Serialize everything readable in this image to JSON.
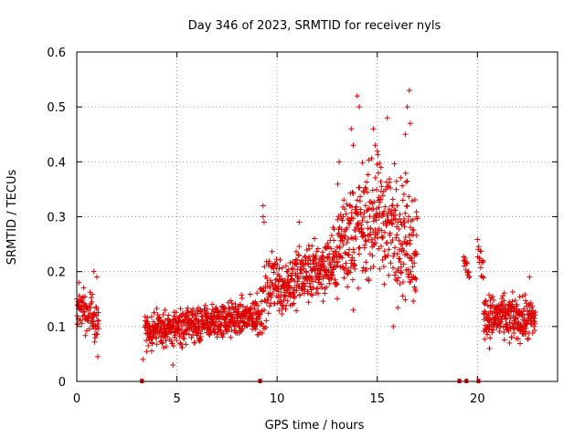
{
  "chart_data": {
    "type": "scatter",
    "title": "Day 346 of 2023, SRMTID for receiver nyls",
    "xlabel": "GPS time / hours",
    "ylabel": "SRMTID / TECUs",
    "xlim": [
      0,
      24
    ],
    "ylim": [
      0,
      0.6
    ],
    "xticks": [
      0,
      5,
      10,
      15,
      20
    ],
    "xtick_labels": [
      "0",
      "5",
      "10",
      "15",
      "20"
    ],
    "yticks": [
      0,
      0.1,
      0.2,
      0.3,
      0.4,
      0.5,
      0.6
    ],
    "ytick_labels": [
      "0",
      "0.1",
      "0.2",
      "0.3",
      "0.4",
      "0.5",
      "0.6"
    ],
    "grid": true,
    "marker": "+",
    "color": "#dd0000",
    "description": "Dense SRMTID point cloud; main features summarized as trend segments with spread, plus isolated points.",
    "segments": [
      {
        "t_start": 0.0,
        "t_end": 1.1,
        "dt": 0.012,
        "level_start": 0.14,
        "level_end": 0.11,
        "spread": 0.035
      },
      {
        "t_start": 3.4,
        "t_end": 9.0,
        "dt": 0.01,
        "level_start": 0.09,
        "level_end": 0.12,
        "spread": 0.03
      },
      {
        "t_start": 9.0,
        "t_end": 10.0,
        "dt": 0.012,
        "level_start": 0.12,
        "level_end": 0.2,
        "spread": 0.05
      },
      {
        "t_start": 10.0,
        "t_end": 13.0,
        "dt": 0.01,
        "level_start": 0.17,
        "level_end": 0.22,
        "spread": 0.05
      },
      {
        "t_start": 13.0,
        "t_end": 15.0,
        "dt": 0.01,
        "level_start": 0.25,
        "level_end": 0.3,
        "spread": 0.09
      },
      {
        "t_start": 15.0,
        "t_end": 17.0,
        "dt": 0.01,
        "level_start": 0.3,
        "level_end": 0.25,
        "spread": 0.1
      },
      {
        "t_start": 19.3,
        "t_end": 19.6,
        "dt": 0.02,
        "level_start": 0.22,
        "level_end": 0.2,
        "spread": 0.02
      },
      {
        "t_start": 20.0,
        "t_end": 20.3,
        "dt": 0.02,
        "level_start": 0.24,
        "level_end": 0.2,
        "spread": 0.025
      },
      {
        "t_start": 20.3,
        "t_end": 22.9,
        "dt": 0.01,
        "level_start": 0.12,
        "level_end": 0.11,
        "spread": 0.035
      }
    ],
    "points": [
      {
        "x": 0.1,
        "y": 0.18
      },
      {
        "x": 0.85,
        "y": 0.2
      },
      {
        "x": 1.0,
        "y": 0.19
      },
      {
        "x": 1.05,
        "y": 0.045
      },
      {
        "x": 3.3,
        "y": 0.04
      },
      {
        "x": 4.8,
        "y": 0.03
      },
      {
        "x": 9.3,
        "y": 0.3
      },
      {
        "x": 9.3,
        "y": 0.32
      },
      {
        "x": 9.35,
        "y": 0.29
      },
      {
        "x": 11.1,
        "y": 0.29
      },
      {
        "x": 13.1,
        "y": 0.4
      },
      {
        "x": 13.7,
        "y": 0.46
      },
      {
        "x": 13.8,
        "y": 0.43
      },
      {
        "x": 14.0,
        "y": 0.52
      },
      {
        "x": 14.1,
        "y": 0.5
      },
      {
        "x": 14.8,
        "y": 0.46
      },
      {
        "x": 14.9,
        "y": 0.43
      },
      {
        "x": 15.5,
        "y": 0.48
      },
      {
        "x": 16.4,
        "y": 0.45
      },
      {
        "x": 16.5,
        "y": 0.5
      },
      {
        "x": 16.6,
        "y": 0.53
      },
      {
        "x": 16.65,
        "y": 0.47
      },
      {
        "x": 15.8,
        "y": 0.1
      },
      {
        "x": 13.8,
        "y": 0.13
      },
      {
        "x": 20.6,
        "y": 0.06
      },
      {
        "x": 21.6,
        "y": 0.07
      },
      {
        "x": 22.6,
        "y": 0.19
      }
    ],
    "zero_markers": [
      3.25,
      9.15,
      19.1,
      19.45,
      20.05
    ]
  }
}
